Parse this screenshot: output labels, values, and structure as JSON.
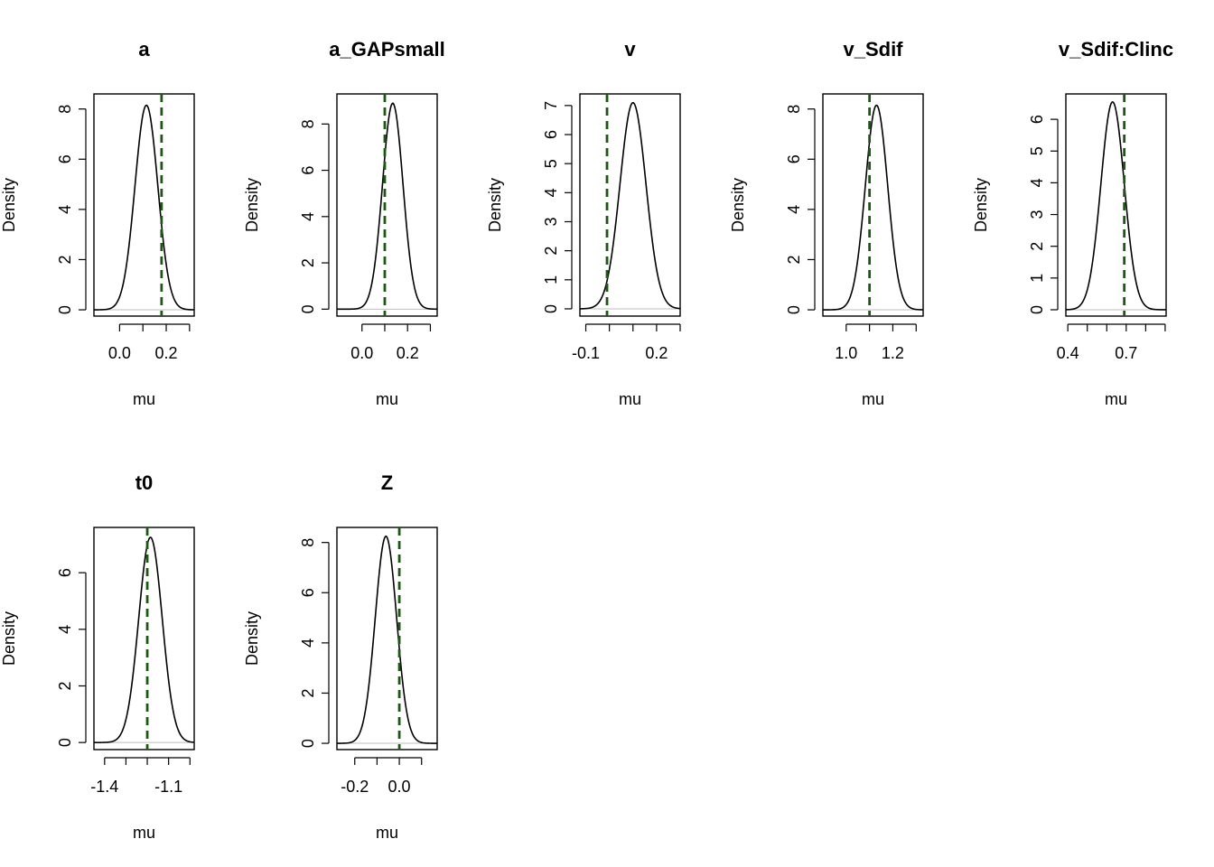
{
  "colors": {
    "curve": "#000000",
    "vline": "#1a5a10",
    "baseline": "#bebebe",
    "frame": "#000000"
  },
  "chart_data": [
    {
      "type": "line",
      "title": "a",
      "xlabel": "mu",
      "ylabel": "Density",
      "xlim": [
        -0.11,
        0.32
      ],
      "ylim": [
        -0.25,
        8.6
      ],
      "xticks": [
        0.0,
        0.1,
        0.2,
        0.3
      ],
      "xtick_labels": [
        "0.0",
        "",
        "0.2",
        ""
      ],
      "yticks": [
        0,
        2,
        4,
        6,
        8
      ],
      "ytick_labels": [
        "0",
        "2",
        "4",
        "6",
        "8"
      ],
      "vline": 0.18,
      "mean": 0.115,
      "sd": 0.049,
      "peak": 8.15
    },
    {
      "type": "line",
      "title": "a_GAPsmall",
      "xlabel": "mu",
      "ylabel": "Density",
      "xlim": [
        -0.11,
        0.33
      ],
      "ylim": [
        -0.3,
        9.3
      ],
      "xticks": [
        0.0,
        0.1,
        0.2,
        0.3
      ],
      "xtick_labels": [
        "0.0",
        "",
        "0.2",
        ""
      ],
      "yticks": [
        0,
        2,
        4,
        6,
        8
      ],
      "ytick_labels": [
        "0",
        "2",
        "4",
        "6",
        "8"
      ],
      "vline": 0.1,
      "mean": 0.135,
      "sd": 0.045,
      "peak": 8.9
    },
    {
      "type": "line",
      "title": "v",
      "xlabel": "mu",
      "ylabel": "Density",
      "xlim": [
        -0.125,
        0.3
      ],
      "ylim": [
        -0.25,
        7.4
      ],
      "xticks": [
        -0.1,
        0.0,
        0.1,
        0.2,
        0.3
      ],
      "xtick_labels": [
        "-0.1",
        "",
        "",
        "0.2",
        ""
      ],
      "yticks": [
        0,
        1,
        2,
        3,
        4,
        5,
        6,
        7
      ],
      "ytick_labels": [
        "0",
        "1",
        "2",
        "3",
        "4",
        "5",
        "6",
        "7"
      ],
      "vline": -0.01,
      "mean": 0.1,
      "sd": 0.055,
      "peak": 7.1
    },
    {
      "type": "line",
      "title": "v_Sdif",
      "xlabel": "mu",
      "ylabel": "Density",
      "xlim": [
        0.9,
        1.33
      ],
      "ylim": [
        -0.25,
        8.6
      ],
      "xticks": [
        1.0,
        1.1,
        1.2,
        1.3
      ],
      "xtick_labels": [
        "1.0",
        "",
        "1.2",
        ""
      ],
      "yticks": [
        0,
        2,
        4,
        6,
        8
      ],
      "ytick_labels": [
        "0",
        "2",
        "4",
        "6",
        "8"
      ],
      "vline": 1.1,
      "mean": 1.13,
      "sd": 0.048,
      "peak": 8.15
    },
    {
      "type": "line",
      "title": "v_Sdif:Clinc",
      "xlabel": "mu",
      "ylabel": "Density",
      "xlim": [
        0.39,
        0.905
      ],
      "ylim": [
        -0.2,
        6.8
      ],
      "xticks": [
        0.4,
        0.5,
        0.6,
        0.7,
        0.8,
        0.9
      ],
      "xtick_labels": [
        "0.4",
        "",
        "",
        "0.7",
        "",
        ""
      ],
      "yticks": [
        0,
        1,
        2,
        3,
        4,
        5,
        6
      ],
      "ytick_labels": [
        "0",
        "1",
        "2",
        "3",
        "4",
        "5",
        "6"
      ],
      "vline": 0.69,
      "mean": 0.63,
      "sd": 0.06,
      "peak": 6.55
    },
    {
      "type": "line",
      "title": "t0",
      "xlabel": "mu",
      "ylabel": "Density",
      "xlim": [
        -1.45,
        -0.98
      ],
      "ylim": [
        -0.25,
        7.6
      ],
      "xticks": [
        -1.4,
        -1.3,
        -1.2,
        -1.1,
        -1.0
      ],
      "xtick_labels": [
        "-1.4",
        "",
        "",
        "-1.1",
        ""
      ],
      "yticks": [
        0,
        2,
        4,
        6
      ],
      "ytick_labels": [
        "0",
        "2",
        "4",
        "6"
      ],
      "vline": -1.2,
      "mean": -1.185,
      "sd": 0.055,
      "peak": 7.25
    },
    {
      "type": "line",
      "title": "Z",
      "xlabel": "mu",
      "ylabel": "Density",
      "xlim": [
        -0.28,
        0.17
      ],
      "ylim": [
        -0.25,
        8.6
      ],
      "xticks": [
        -0.2,
        -0.1,
        0.0,
        0.1
      ],
      "xtick_labels": [
        "-0.2",
        "",
        "0.0",
        ""
      ],
      "yticks": [
        0,
        2,
        4,
        6,
        8
      ],
      "ytick_labels": [
        "0",
        "2",
        "4",
        "6",
        "8"
      ],
      "vline": 0.0,
      "mean": -0.06,
      "sd": 0.048,
      "peak": 8.25
    }
  ]
}
